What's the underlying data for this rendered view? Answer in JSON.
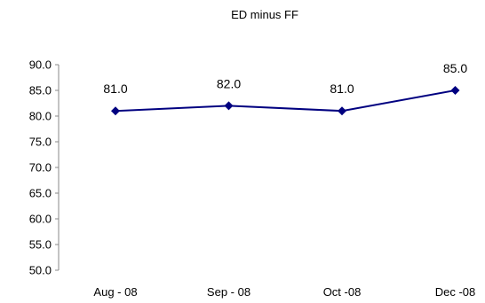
{
  "chart_data": {
    "type": "line",
    "title": "ED minus FF",
    "xlabel": "",
    "ylabel": "",
    "categories": [
      "Aug - 08",
      "Sep - 08",
      "Oct -08",
      "Dec -08"
    ],
    "series": [
      {
        "values": [
          81.0,
          82.0,
          81.0,
          85.0
        ],
        "data_labels": [
          "81.0",
          "82.0",
          "81.0",
          "85.0"
        ],
        "color": "#000080",
        "marker": "diamond"
      }
    ],
    "ylim": [
      50.0,
      90.0
    ],
    "yticks": [
      50.0,
      55.0,
      60.0,
      65.0,
      70.0,
      75.0,
      80.0,
      85.0,
      90.0
    ],
    "ytick_labels": [
      "50.0",
      "55.0",
      "60.0",
      "65.0",
      "70.0",
      "75.0",
      "80.0",
      "85.0",
      "90.0"
    ],
    "grid": false,
    "legend": "none"
  }
}
